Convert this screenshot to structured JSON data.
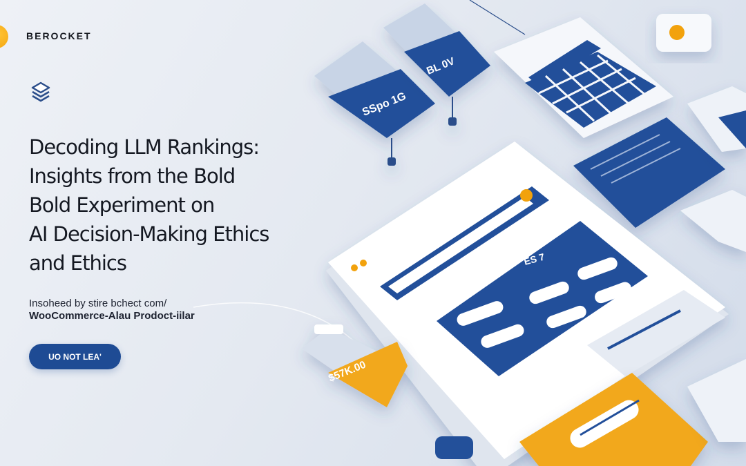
{
  "brand": {
    "name": "BEROCKET",
    "accent": "#f2a20c",
    "primary": "#1e4b94"
  },
  "hero": {
    "title_lines": [
      "Decoding LLM Rankings:",
      "Insights from the Bold",
      "Bold Experiment on",
      "AI Decision-Making Ethics",
      "and Ethics"
    ],
    "subtitle_line1": "Insoheed by stire bchect com/",
    "subtitle_line2": "WooCommerce-Alau Prodoct-iilar",
    "cta_label": "UO NOT LEA'"
  },
  "illustration": {
    "price_card_value": "$57K.00",
    "tablet_panel_label": "ES 7",
    "floating_card_1_value": "SSpo 1G",
    "floating_card_2_value": "BL 0V"
  }
}
